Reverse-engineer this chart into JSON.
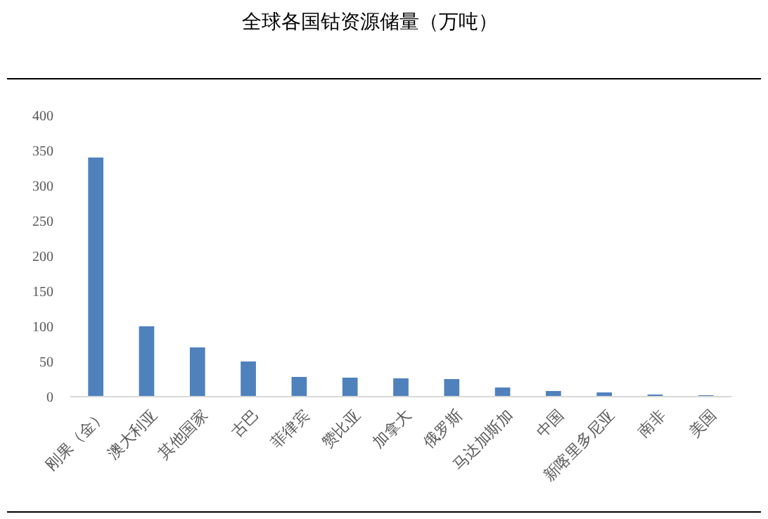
{
  "chart_data": {
    "type": "bar",
    "title": "全球各国钴资源储量（万吨）",
    "categories": [
      "刚果（金）",
      "澳大利亚",
      "其他国家",
      "古巴",
      "菲律宾",
      "赞比亚",
      "加拿大",
      "俄罗斯",
      "马达加斯加",
      "中国",
      "新喀里多尼亚",
      "南非",
      "美国"
    ],
    "values": [
      340,
      100,
      70,
      50,
      28,
      27,
      26,
      25,
      13,
      8,
      6,
      3,
      2
    ],
    "color": "#4f81bd",
    "ylim": [
      0,
      400
    ],
    "yticks": [
      0,
      50,
      100,
      150,
      200,
      250,
      300,
      350,
      400
    ],
    "grid": false
  }
}
